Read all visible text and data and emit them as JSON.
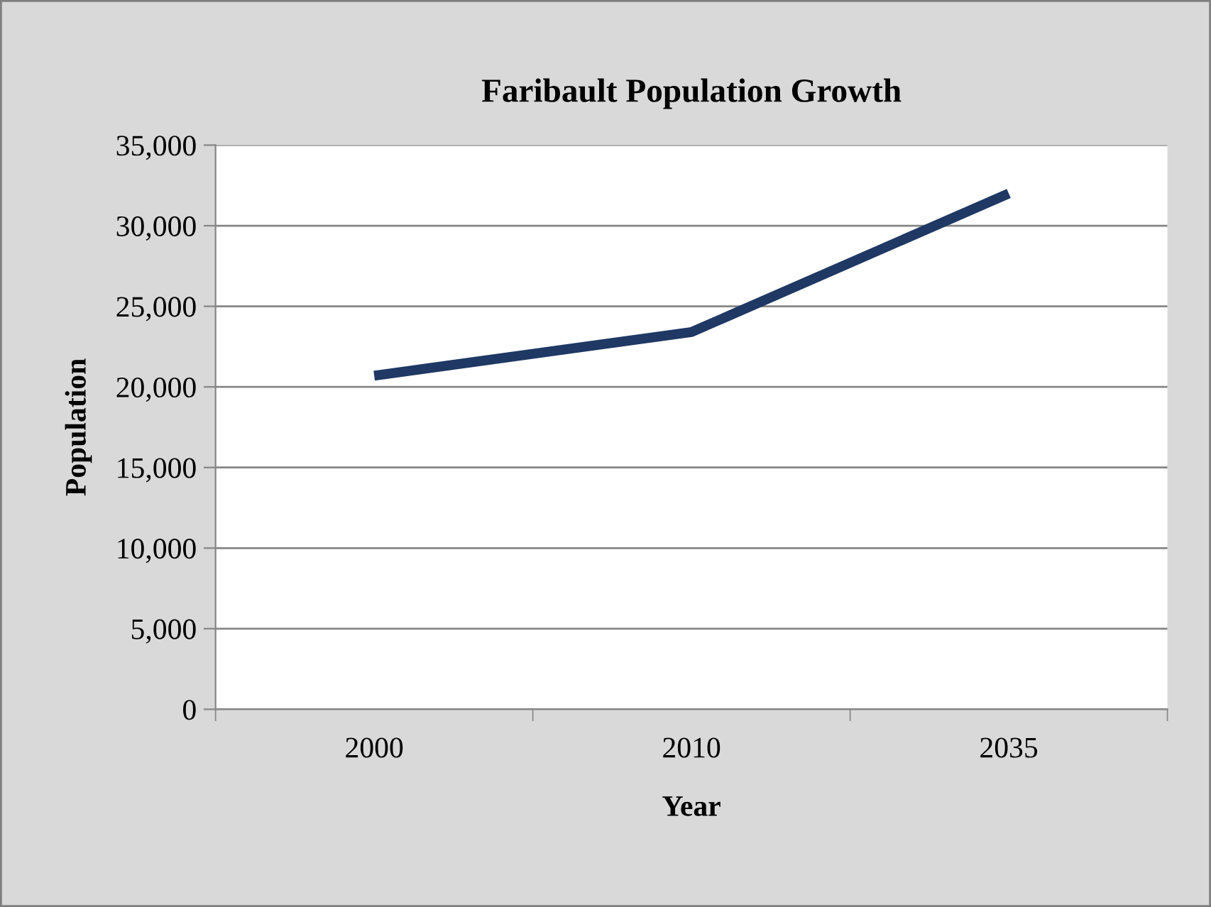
{
  "chart_data": {
    "type": "line",
    "title": "Faribault Population Growth",
    "xlabel": "Year",
    "ylabel": "Population",
    "categories": [
      "2000",
      "2010",
      "2035"
    ],
    "series": [
      {
        "color": "#1f3864",
        "values": [
          20700,
          23400,
          32000
        ]
      }
    ],
    "ylim": [
      0,
      35000
    ],
    "yticks": [
      {
        "value": 0,
        "label": "0"
      },
      {
        "value": 5000,
        "label": "5,000"
      },
      {
        "value": 10000,
        "label": "10,000"
      },
      {
        "value": 15000,
        "label": "15,000"
      },
      {
        "value": 20000,
        "label": "20,000"
      },
      {
        "value": 25000,
        "label": "25,000"
      },
      {
        "value": 30000,
        "label": "30,000"
      },
      {
        "value": 35000,
        "label": "35,000"
      }
    ],
    "grid": "y",
    "marker": "none",
    "line_style": "solid"
  }
}
